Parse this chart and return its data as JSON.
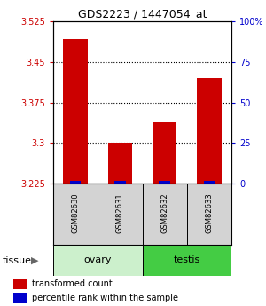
{
  "title": "GDS2223 / 1447054_at",
  "samples": [
    "GSM82630",
    "GSM82631",
    "GSM82632",
    "GSM82633"
  ],
  "red_values": [
    3.493,
    3.3,
    3.34,
    3.42
  ],
  "blue_bar_height": 0.005,
  "ymin": 3.225,
  "ymax": 3.525,
  "yticks_left": [
    3.225,
    3.3,
    3.375,
    3.45,
    3.525
  ],
  "yticks_right_vals": [
    0,
    25,
    50,
    75,
    100
  ],
  "yticks_right_labels": [
    "0",
    "25",
    "50",
    "75",
    "100%"
  ],
  "gridlines": [
    3.3,
    3.375,
    3.45
  ],
  "tissue_colors": {
    "ovary": "#ccf0cc",
    "testis": "#44cc44"
  },
  "bar_width": 0.55,
  "red_color": "#cc0000",
  "blue_color": "#0000cc",
  "bg_color": "#ffffff",
  "left_label_color": "#cc0000",
  "right_label_color": "#0000cc",
  "legend_red": "transformed count",
  "legend_blue": "percentile rank within the sample",
  "tissue_label": "tissue"
}
